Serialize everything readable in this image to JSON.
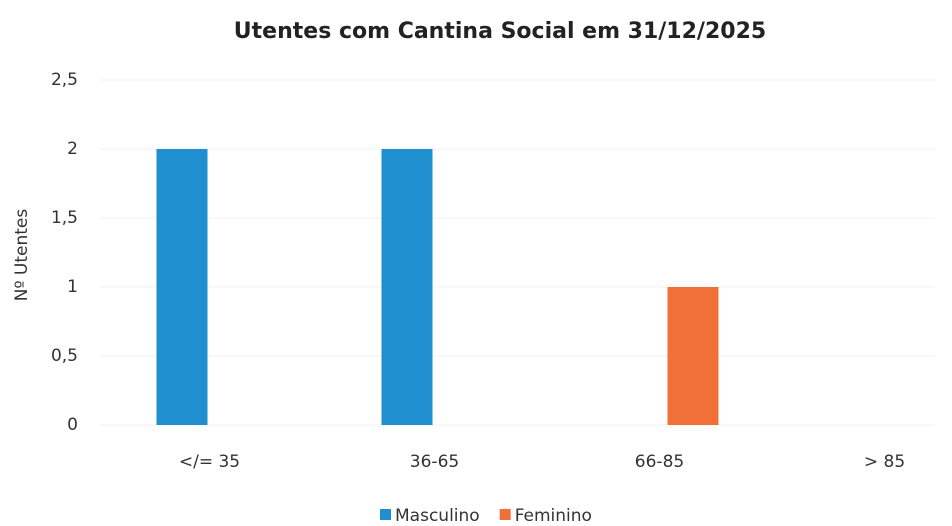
{
  "chart_data": {
    "type": "bar",
    "title": "Utentes com Cantina Social em 31/12/2025",
    "y_label": "Nº Utentes",
    "categories": [
      "</= 35",
      "36-65",
      "66-85",
      "> 85"
    ],
    "series": [
      {
        "name": "Masculino",
        "color": "#1f8fcf",
        "values": [
          2,
          2,
          0,
          0
        ]
      },
      {
        "name": "Feminino",
        "color": "#f07038",
        "values": [
          0,
          0,
          1,
          0
        ]
      }
    ],
    "ylim": [
      0,
      2.5
    ],
    "yticks": [
      0,
      {
        "value": 0.5,
        "label": "0,5"
      },
      1,
      {
        "value": 1.5,
        "label": "1,5"
      },
      2,
      {
        "value": 2.5,
        "label": "2,5"
      }
    ],
    "grid": true,
    "legend": "bottom"
  }
}
